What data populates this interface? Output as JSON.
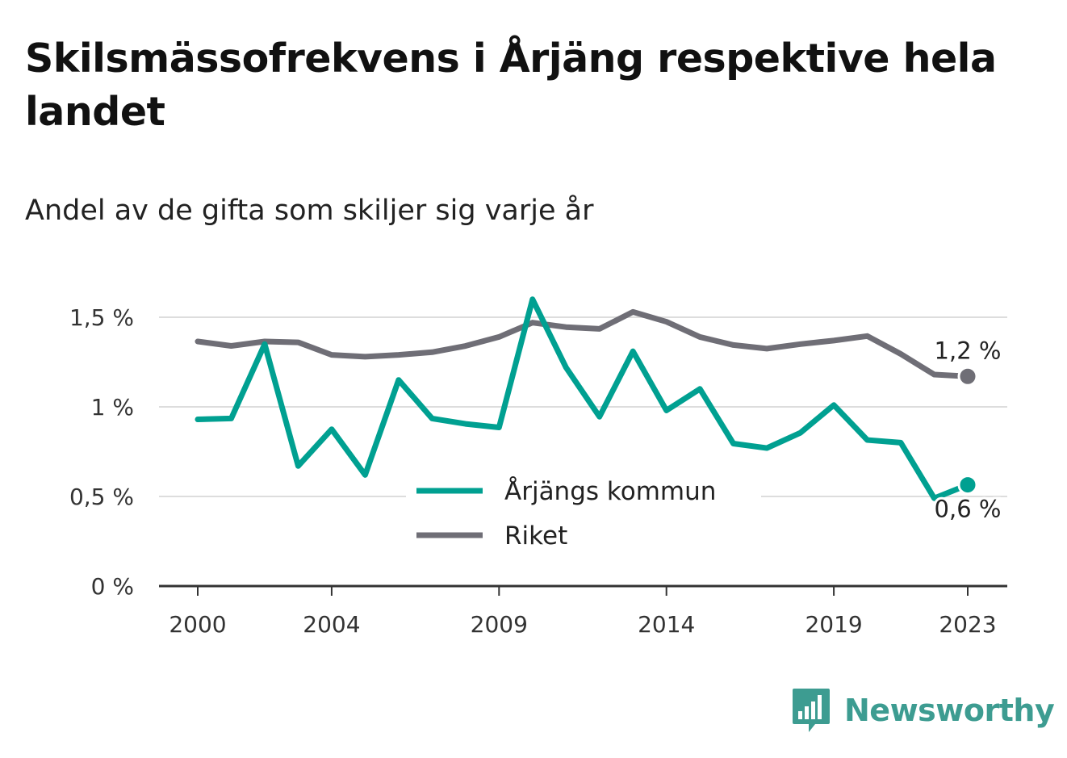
{
  "title": "Skilsmässofrekvens i Årjäng respektive hela landet",
  "subtitle": "Andel av de gifta som skiljer sig varje år",
  "brand": "Newsworthy",
  "colors": {
    "arjang": "#00a091",
    "riket": "#6f6e76",
    "grid": "#dddddd",
    "axis": "#333333"
  },
  "chart_data": {
    "type": "line",
    "x": [
      2000,
      2001,
      2002,
      2003,
      2004,
      2005,
      2006,
      2007,
      2008,
      2009,
      2010,
      2011,
      2012,
      2013,
      2014,
      2015,
      2016,
      2017,
      2018,
      2019,
      2020,
      2021,
      2022,
      2023
    ],
    "xlim": [
      2000,
      2023
    ],
    "ylim": [
      0,
      1.5
    ],
    "x_ticks": [
      2000,
      2004,
      2009,
      2014,
      2019,
      2023
    ],
    "x_tick_labels": [
      "2000",
      "2004",
      "2009",
      "2014",
      "2019",
      "2023"
    ],
    "y_ticks": [
      0,
      0.5,
      1,
      1.5
    ],
    "y_tick_labels": [
      "0 %",
      "0,5 %",
      "1 %",
      "1,5 %"
    ],
    "grid": true,
    "legend_position": "center-bottom",
    "series": [
      {
        "name": "Årjängs kommun",
        "color": "#00a091",
        "end_label": "0,6 %",
        "values": [
          0.93,
          0.935,
          1.35,
          0.67,
          0.875,
          0.62,
          1.15,
          0.935,
          0.905,
          0.885,
          1.6,
          1.22,
          0.945,
          1.31,
          0.98,
          1.1,
          0.795,
          0.77,
          0.855,
          1.01,
          0.815,
          0.8,
          0.49,
          0.565
        ]
      },
      {
        "name": "Riket",
        "color": "#6f6e76",
        "end_label": "1,2 %",
        "values": [
          1.365,
          1.34,
          1.365,
          1.36,
          1.29,
          1.28,
          1.29,
          1.305,
          1.34,
          1.39,
          1.47,
          1.445,
          1.435,
          1.53,
          1.475,
          1.39,
          1.345,
          1.325,
          1.35,
          1.37,
          1.395,
          1.295,
          1.18,
          1.17
        ]
      }
    ]
  }
}
